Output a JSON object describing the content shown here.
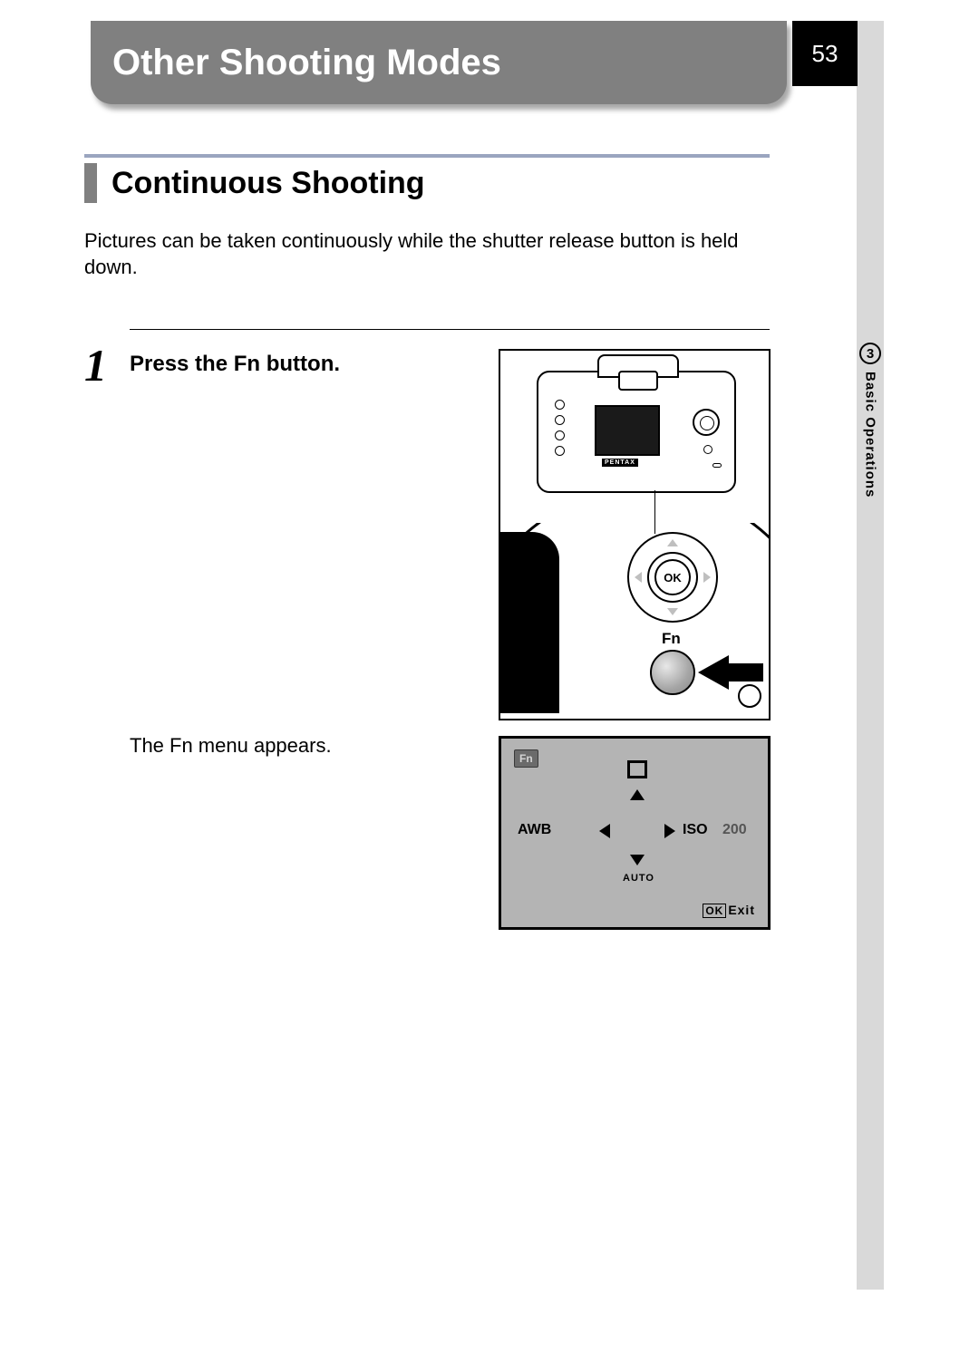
{
  "page_number": "53",
  "title": "Other Shooting Modes",
  "section_title": "Continuous Shooting",
  "intro_text": "Pictures can be taken continuously while the shutter release button is held down.",
  "step": {
    "number": "1",
    "title_prefix": "Press the ",
    "title_fn": "Fn",
    "title_suffix": " button.",
    "detail": "The Fn menu appears."
  },
  "chapter": {
    "number": "3",
    "label": "Basic Operations"
  },
  "camera": {
    "brand": "PENTAX",
    "ok_label": "OK",
    "fn_label": "Fn"
  },
  "lcd": {
    "fn_badge": "Fn",
    "awb": "AWB",
    "iso_label": "ISO",
    "iso_value": "200",
    "auto": "AUTO",
    "ok": "OK",
    "exit": "Exit"
  },
  "colors": {
    "title_bg": "#808080",
    "sidebar_bg": "#d9d9d9",
    "accent_rule": "#9aa5bf",
    "lcd_bg": "#b4b4b4"
  }
}
